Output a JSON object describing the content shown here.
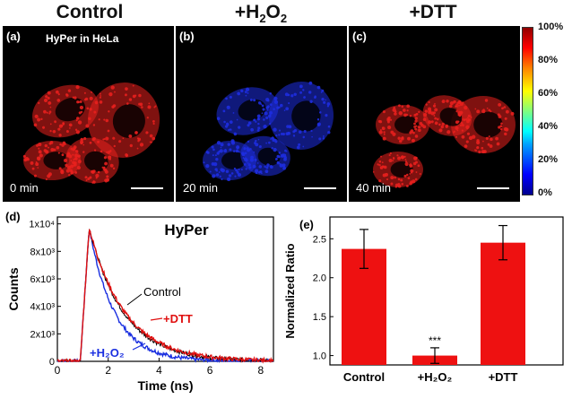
{
  "top_row": {
    "titles": [
      "Control",
      "+H",
      "+DTT"
    ],
    "h2o2_title": {
      "main": "+H",
      "sub1": "2",
      "mid": "O",
      "sub2": "2"
    },
    "panels": [
      {
        "label": "(a)",
        "caption": "HyPer in HeLa",
        "time": "0 min",
        "cell_color": "#e8201e"
      },
      {
        "label": "(b)",
        "caption": "",
        "time": "20 min",
        "cell_color": "#1e2ee0"
      },
      {
        "label": "(c)",
        "caption": "",
        "time": "40 min",
        "cell_color": "#e8201e"
      }
    ],
    "colorbar": {
      "ticks": [
        "100%",
        "80%",
        "60%",
        "40%",
        "20%",
        "0%"
      ]
    }
  },
  "panel_d": {
    "label": "(d)",
    "chart_data": {
      "type": "line",
      "title": "HyPer",
      "xlabel": "Time (ns)",
      "ylabel": "Counts",
      "xlim": [
        0,
        8.5
      ],
      "ylim": [
        0,
        10500
      ],
      "x_ticks": [
        "0",
        "2",
        "4",
        "6",
        "8"
      ],
      "y_ticks": [
        "0",
        "2x10³",
        "4x10³",
        "6x10³",
        "8x10³",
        "1x10⁴"
      ],
      "series": [
        {
          "name": "Control",
          "color": "#000000",
          "peak_x": 1.25,
          "peak_y": 9700,
          "tau": 1.35
        },
        {
          "name": "+DTT",
          "color": "#e01010",
          "peak_x": 1.25,
          "peak_y": 9700,
          "tau": 1.4
        },
        {
          "name": "+H₂O₂",
          "color": "#1a2fe0",
          "peak_x": 1.25,
          "peak_y": 9700,
          "tau": 1.0
        }
      ],
      "annotations": [
        "Control",
        "+DTT",
        "+H₂O₂"
      ]
    }
  },
  "panel_e": {
    "label": "(e)",
    "chart_data": {
      "type": "bar",
      "categories": [
        "Control",
        "+H₂O₂",
        "+DTT"
      ],
      "values": [
        2.37,
        1.0,
        2.45
      ],
      "errors": [
        0.25,
        0.1,
        0.22
      ],
      "ylabel": "Normalized Ratio",
      "ylim": [
        0.88,
        2.78
      ],
      "y_ticks": [
        "1.0",
        "1.5",
        "2.0",
        "2.5"
      ],
      "bar_color": "#ee1111",
      "significance": "***"
    }
  }
}
